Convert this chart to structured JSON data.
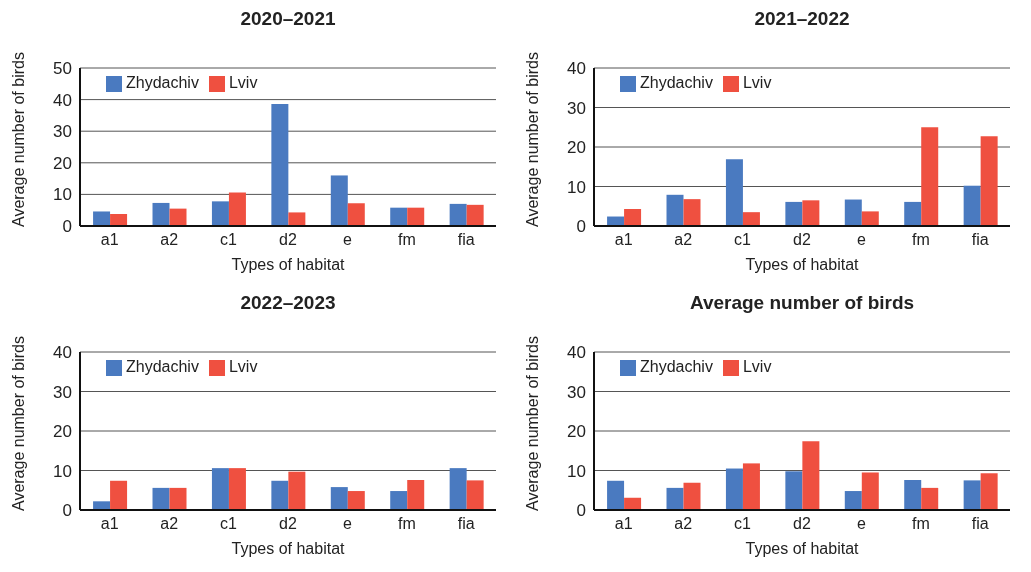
{
  "chart_data": [
    {
      "type": "bar",
      "title": "2020–2021",
      "xlabel": "Types of habitat",
      "ylabel": "Average number of birds",
      "categories": [
        "a1",
        "a2",
        "c1",
        "d2",
        "e",
        "fm",
        "fia"
      ],
      "ylim": [
        0,
        50
      ],
      "yticks": [
        0,
        10,
        20,
        30,
        40,
        50
      ],
      "grid": "y",
      "legend": "top left",
      "series": [
        {
          "name": "Zhydachiv",
          "color": "#4a7ac0",
          "values": [
            4.6,
            7.3,
            7.8,
            38.6,
            16.0,
            5.8,
            7.0
          ]
        },
        {
          "name": "Lviv",
          "color": "#ef5040",
          "values": [
            3.8,
            5.5,
            10.6,
            4.3,
            7.2,
            5.8,
            6.7
          ]
        }
      ]
    },
    {
      "type": "bar",
      "title": "2021–2022",
      "xlabel": "Types of habitat",
      "ylabel": "Average number of birds",
      "categories": [
        "a1",
        "a2",
        "c1",
        "d2",
        "e",
        "fm",
        "fia"
      ],
      "ylim": [
        0,
        40
      ],
      "yticks": [
        0,
        10,
        20,
        30,
        40
      ],
      "grid": "y",
      "legend": "top left",
      "series": [
        {
          "name": "Zhydachiv",
          "color": "#4a7ac0",
          "values": [
            2.4,
            7.9,
            16.9,
            6.1,
            6.7,
            6.1,
            10.2
          ]
        },
        {
          "name": "Lviv",
          "color": "#ef5040",
          "values": [
            4.3,
            6.8,
            3.5,
            6.5,
            3.7,
            25.0,
            22.7
          ]
        }
      ]
    },
    {
      "type": "bar",
      "title": "2022–2023",
      "xlabel": "Types of habitat",
      "ylabel": "Average number of birds",
      "categories": [
        "a1",
        "a2",
        "c1",
        "d2",
        "e",
        "fm",
        "fia"
      ],
      "ylim": [
        0,
        40
      ],
      "yticks": [
        0,
        10,
        20,
        30,
        40
      ],
      "grid": "y",
      "legend": "top left",
      "series": [
        {
          "name": "Zhydachiv",
          "color": "#4a7ac0",
          "values": [
            2.2,
            5.6,
            10.6,
            7.4,
            5.8,
            4.8,
            10.6
          ]
        },
        {
          "name": "Lviv",
          "color": "#ef5040",
          "values": [
            7.4,
            5.6,
            10.6,
            9.7,
            4.8,
            7.6,
            7.5
          ]
        }
      ]
    },
    {
      "type": "bar",
      "title": "Average number of birds",
      "xlabel": "Types of habitat",
      "ylabel": "Average number of birds",
      "categories": [
        "a1",
        "a2",
        "c1",
        "d2",
        "e",
        "fm",
        "fia"
      ],
      "ylim": [
        0,
        40
      ],
      "yticks": [
        0,
        10,
        20,
        30,
        40
      ],
      "grid": "y",
      "legend": "top left",
      "series": [
        {
          "name": "Zhydachiv",
          "color": "#4a7ac0",
          "values": [
            7.4,
            5.6,
            10.5,
            9.8,
            4.8,
            7.6,
            7.5
          ]
        },
        {
          "name": "Lviv",
          "color": "#ef5040",
          "values": [
            3.1,
            6.9,
            11.8,
            17.4,
            9.5,
            5.6,
            9.3
          ]
        }
      ]
    }
  ]
}
